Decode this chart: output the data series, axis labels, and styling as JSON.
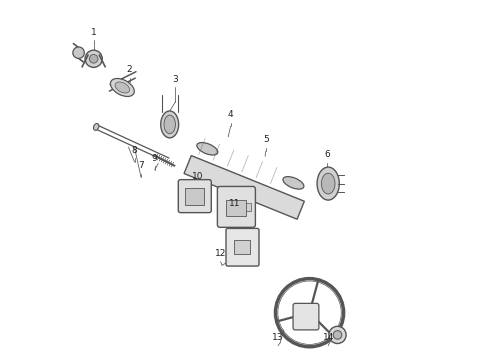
{
  "bg_color": "#ffffff",
  "line_color": "#555555",
  "label_color": "#222222",
  "figsize": [
    4.9,
    3.6
  ],
  "dpi": 100
}
